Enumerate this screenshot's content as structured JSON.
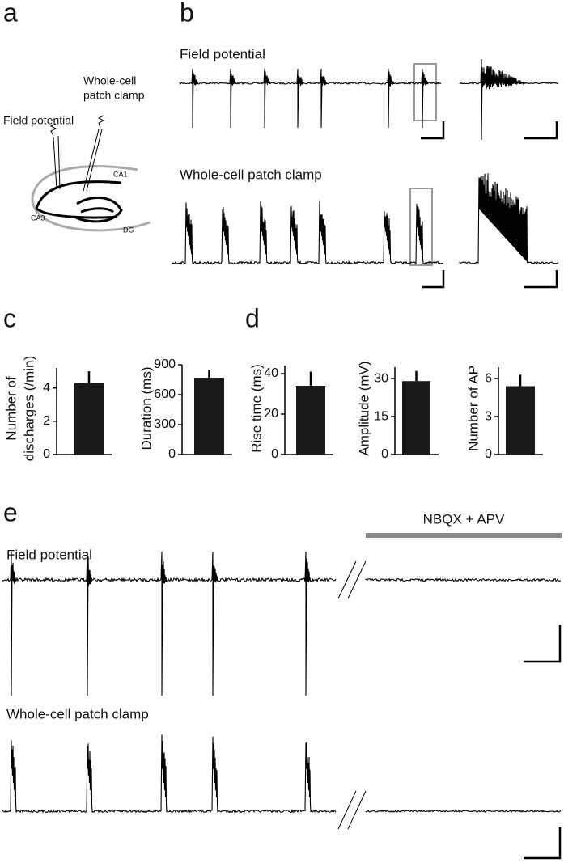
{
  "panels": {
    "a": "a",
    "b": "b",
    "c": "c",
    "d": "d",
    "e": "e"
  },
  "diagram": {
    "whole_cell": [
      "Whole-cell",
      "patch clamp"
    ],
    "field": "Field potential",
    "regions": [
      "CA1",
      "CA3",
      "DG"
    ]
  },
  "panel_b": {
    "field": "Field potential",
    "whole_cell": "Whole-cell patch clamp"
  },
  "panel_e": {
    "drug": "NBQX + APV",
    "field": "Field potential",
    "whole_cell": "Whole-cell patch clamp"
  },
  "chart_data": [
    {
      "type": "bar",
      "ylabel": [
        "Number of",
        "discharges (/min)"
      ],
      "values": [
        4.3
      ],
      "errors": [
        0.7
      ],
      "color": "#1a1a1a",
      "ylim": [
        0,
        5.2
      ],
      "yticks": [
        0,
        2,
        4
      ]
    },
    {
      "type": "bar",
      "ylabel": [
        "Duration (ms)"
      ],
      "values": [
        770
      ],
      "errors": [
        80
      ],
      "color": "#1a1a1a",
      "ylim": [
        0,
        900
      ],
      "yticks": [
        0,
        300,
        600,
        900
      ]
    },
    {
      "type": "bar",
      "ylabel": [
        "Rise time (ms)"
      ],
      "values": [
        34
      ],
      "errors": [
        7
      ],
      "color": "#1a1a1a",
      "ylim": [
        0,
        44
      ],
      "yticks": [
        0,
        20,
        40
      ]
    },
    {
      "type": "bar",
      "ylabel": [
        "Amplitude (mV)"
      ],
      "values": [
        29
      ],
      "errors": [
        4
      ],
      "color": "#1a1a1a",
      "ylim": [
        0,
        34.5
      ],
      "yticks": [
        0,
        15,
        30
      ]
    },
    {
      "type": "bar",
      "ylabel": [
        "Number of AP"
      ],
      "values": [
        5.4
      ],
      "errors": [
        0.9
      ],
      "color": "#1a1a1a",
      "ylim": [
        0,
        6.9
      ],
      "yticks": [
        0,
        3,
        6
      ]
    }
  ]
}
